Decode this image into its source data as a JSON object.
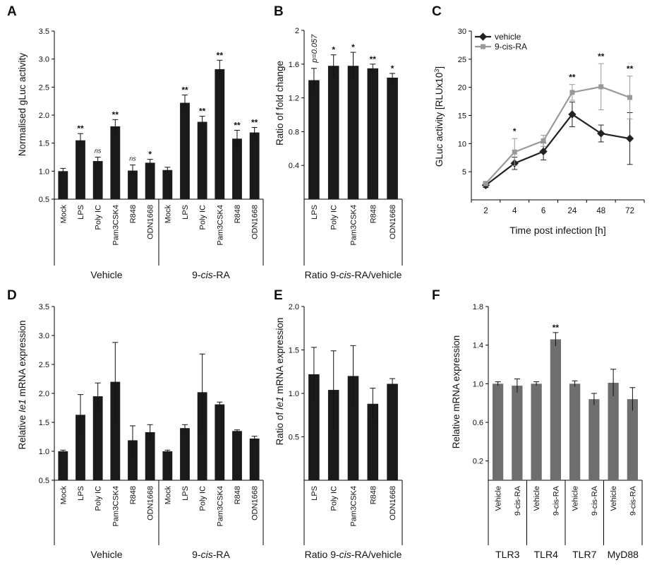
{
  "chart_data": [
    {
      "panel": "A",
      "type": "bar",
      "ylabel": "Normalised gLuc activity",
      "ylim": [
        0.5,
        3.5
      ],
      "yticks": [
        "0.5",
        "1.0",
        "1.5",
        "2.0",
        "2.5",
        "3.0",
        "3.5"
      ],
      "categories": [
        "Mock",
        "LPS",
        "Poly IC",
        "Pam3CSK4",
        "R848",
        "ODN1668",
        "Mock",
        "LPS",
        "Poly IC",
        "Pam3CSK4",
        "R848",
        "ODN1668"
      ],
      "values": [
        1.0,
        1.55,
        1.18,
        1.8,
        1.01,
        1.15,
        1.02,
        2.22,
        1.88,
        2.82,
        1.58,
        1.69
      ],
      "errors": [
        0.05,
        0.12,
        0.07,
        0.12,
        0.1,
        0.06,
        0.05,
        0.14,
        0.1,
        0.16,
        0.15,
        0.09
      ],
      "annotations": [
        "",
        "**",
        "ns",
        "**",
        "ns",
        "*",
        "",
        "**",
        "**",
        "**",
        "**",
        "**"
      ],
      "groups": [
        {
          "label": "Vehicle",
          "count": 6
        },
        {
          "label": "9-cis-RA",
          "count": 6
        }
      ],
      "color": "#1a1a1a"
    },
    {
      "panel": "B",
      "type": "bar",
      "ylabel": "Ratio of fold change",
      "ylim": [
        0,
        2
      ],
      "yticks": [
        "0.4",
        "0.8",
        "1.2",
        "1.6",
        "2"
      ],
      "categories": [
        "LPS",
        "Poly IC",
        "Pam3CSK4",
        "R848",
        "ODN1668"
      ],
      "values": [
        1.41,
        1.58,
        1.58,
        1.55,
        1.44
      ],
      "errors": [
        0.14,
        0.13,
        0.16,
        0.05,
        0.05
      ],
      "annotations": [
        "p=0.057",
        "*",
        "*",
        "**",
        "*"
      ],
      "groups": [
        {
          "label": "Ratio 9-cis-RA/vehicle",
          "count": 5
        }
      ],
      "color": "#1a1a1a"
    },
    {
      "panel": "C",
      "type": "line",
      "xlabel": "Time post infection [h]",
      "ylabel": "GLuc activity [RLUx10",
      "ylabel_sup": "3",
      "ylabel_end": "]",
      "ylim": [
        0,
        30
      ],
      "yticks": [
        "5",
        "10",
        "15",
        "20",
        "25",
        "30"
      ],
      "categories": [
        "2",
        "4",
        "6",
        "24",
        "48",
        "72"
      ],
      "series": [
        {
          "name": "vehicle",
          "values": [
            2.6,
            6.5,
            8.6,
            15.2,
            11.8,
            10.9
          ],
          "errors": [
            0.4,
            1.1,
            1.5,
            2.2,
            1.5,
            4.6
          ],
          "color": "#222222"
        },
        {
          "name": "9-cis-RA",
          "values": [
            2.9,
            8.5,
            10.5,
            19.1,
            20.1,
            18.2
          ],
          "errors": [
            0.4,
            2.4,
            1.0,
            1.4,
            4.1,
            3.8
          ],
          "color": "#999999"
        }
      ],
      "annotations": [
        "",
        "*",
        "",
        "**",
        "**",
        "**"
      ]
    },
    {
      "panel": "D",
      "type": "bar",
      "ylabel_pre": "Relative ",
      "ylabel_italic": "Ie1",
      "ylabel_post": " mRNA expression",
      "ylim": [
        0.5,
        3.5
      ],
      "yticks": [
        "0.5",
        "1.0",
        "1.5",
        "2.0",
        "2.5",
        "3.0",
        "3.5"
      ],
      "categories": [
        "Mock",
        "LPS",
        "Poly IC",
        "Pam3CSK4",
        "R848",
        "ODN1668",
        "Mock",
        "LPS",
        "Poly IC",
        "Pam3CSK4",
        "R848",
        "ODN1668"
      ],
      "values": [
        1.0,
        1.63,
        1.95,
        2.2,
        1.19,
        1.33,
        1.0,
        1.4,
        2.02,
        1.81,
        1.35,
        1.22
      ],
      "errors": [
        0.02,
        0.35,
        0.23,
        0.68,
        0.25,
        0.13,
        0.02,
        0.06,
        0.66,
        0.04,
        0.02,
        0.04
      ],
      "groups": [
        {
          "label": "Vehicle",
          "count": 6
        },
        {
          "label": "9-cis-RA",
          "count": 6
        }
      ],
      "color": "#1a1a1a"
    },
    {
      "panel": "E",
      "type": "bar",
      "ylabel_pre": "Ratio of ",
      "ylabel_italic": "Ie1",
      "ylabel_post": " mRNA expression",
      "ylim": [
        0,
        2.0
      ],
      "yticks": [
        "0.5",
        "1.0",
        "1.5",
        "2.0"
      ],
      "categories": [
        "LPS",
        "Poly IC",
        "Pam3CSK4",
        "R848",
        "ODN1668"
      ],
      "values": [
        1.22,
        1.04,
        1.2,
        0.88,
        1.11
      ],
      "errors": [
        0.31,
        0.45,
        0.35,
        0.18,
        0.06
      ],
      "groups": [
        {
          "label": "Ratio 9-cis-RA/vehicle",
          "count": 5
        }
      ],
      "color": "#1a1a1a"
    },
    {
      "panel": "F",
      "type": "bar",
      "ylabel": "Relative mRNA expression",
      "ylim": [
        0,
        1.8
      ],
      "yticks": [
        "0.2",
        "0.6",
        "1.0",
        "1.4",
        "1.8"
      ],
      "categories": [
        "Vehicle",
        "9-cis-RA",
        "Vehicle",
        "9-cis-RA",
        "Vehicle",
        "9-cis-RA",
        "Vehicle",
        "9-cis-RA"
      ],
      "values": [
        1.0,
        0.98,
        1.0,
        1.46,
        1.0,
        0.84,
        1.01,
        0.84
      ],
      "errors": [
        0.02,
        0.07,
        0.02,
        0.07,
        0.03,
        0.06,
        0.14,
        0.12
      ],
      "annotations": [
        "",
        "",
        "",
        "**",
        "",
        "",
        "",
        ""
      ],
      "groups": [
        {
          "label": "TLR3",
          "count": 2
        },
        {
          "label": "TLR4",
          "count": 2
        },
        {
          "label": "TLR7",
          "count": 2
        },
        {
          "label": "MyD88",
          "count": 2
        }
      ],
      "color": "#6e6e6e"
    }
  ]
}
